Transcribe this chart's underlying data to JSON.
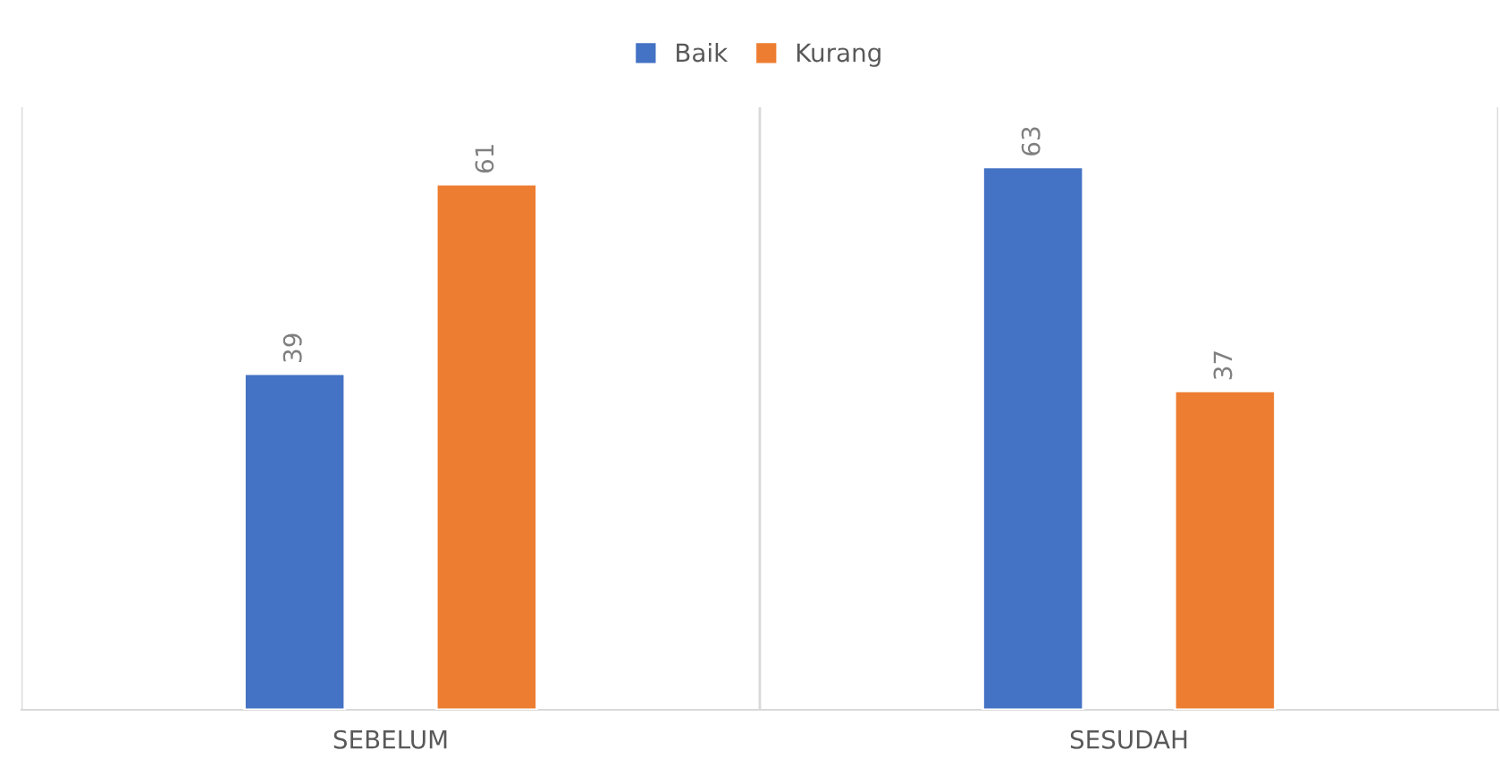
{
  "chart_data": {
    "type": "bar",
    "categories": [
      "SEBELUM",
      "SESUDAH"
    ],
    "series": [
      {
        "name": "Baik",
        "color": "#4472c4",
        "values": [
          39,
          63
        ]
      },
      {
        "name": "Kurang",
        "color": "#ed7d31",
        "values": [
          61,
          37
        ]
      }
    ],
    "data_labels": true,
    "legend": "top",
    "grid": "x"
  }
}
